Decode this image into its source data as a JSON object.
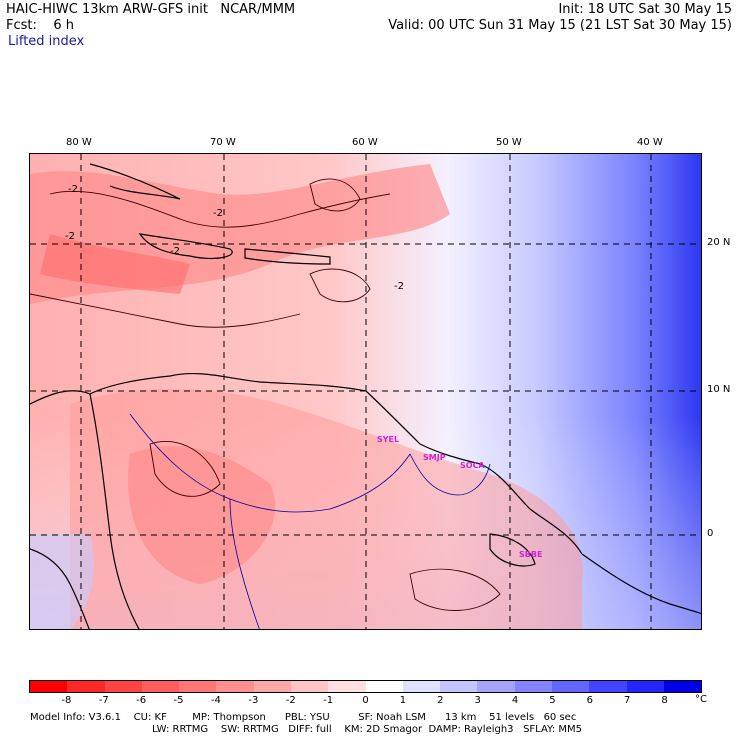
{
  "header": {
    "model_title": "HAIC-HIWC 13km ARW-GFS init   NCAR/MMM",
    "init_text": "Init: 18 UTC Sat 30 May 15",
    "fcst_text": "Fcst:    6 h",
    "valid_text": "Valid: 00 UTC Sun 31 May 15 (21 LST Sat 30 May 15)",
    "field_name": "Lifted index"
  },
  "map": {
    "lon_labels": [
      "80 W",
      "70 W",
      "60 W",
      "50 W",
      "40 W"
    ],
    "lat_labels": [
      "20 N",
      "10 N",
      "0"
    ],
    "contour_labels": [
      "-2",
      "-2",
      "-2",
      "-2",
      "-2"
    ],
    "station_labels": [
      "SYEL",
      "SMJP",
      "SOCA",
      "SBBE"
    ]
  },
  "colorbar": {
    "unit": "°C",
    "labels": [
      "-8",
      "-7",
      "-6",
      "-5",
      "-4",
      "-3",
      "-2",
      "-1",
      "0",
      "1",
      "2",
      "3",
      "4",
      "5",
      "6",
      "7",
      "8"
    ],
    "colors": [
      "#ff0000",
      "#ff2828",
      "#ff4444",
      "#ff5e5e",
      "#ff7676",
      "#ff8e8e",
      "#ffa8a8",
      "#ffc4c4",
      "#ffe0e0",
      "#ffffff",
      "#e0e0ff",
      "#c4c4ff",
      "#a4a4ff",
      "#8484ff",
      "#6464ff",
      "#4444ff",
      "#2424ff",
      "#0000e6"
    ]
  },
  "footer": {
    "line1": "Model Info: V3.6.1    CU: KF        MP: Thompson      PBL: YSU         SF: Noah LSM      13 km    51 levels   60 sec",
    "line2": "LW: RRTMG    SW: RRTMG   DIFF: full    KM: 2D Smagor  DAMP: Rayleigh3   SFLAY: MM5"
  }
}
